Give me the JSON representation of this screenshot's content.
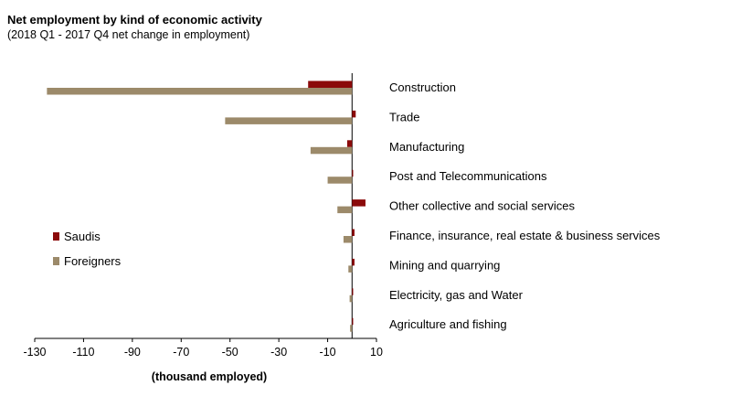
{
  "chart_data": {
    "type": "bar",
    "orientation": "horizontal",
    "title": "Net employment by kind of economic activity",
    "subtitle": "(2018 Q1 - 2017 Q4 net change in employment)",
    "xlabel": "(thousand employed)",
    "xlim": [
      -130,
      10
    ],
    "xticks": [
      -130,
      -110,
      -90,
      -70,
      -50,
      -30,
      -10,
      10
    ],
    "categories": [
      "Construction",
      "Trade",
      "Manufacturing",
      "Post and Telecommunications",
      "Other collective and social services",
      "Finance, insurance, real estate & business services",
      "Mining and quarrying",
      "Electricity, gas and  Water",
      "Agriculture and fishing"
    ],
    "series": [
      {
        "name": "Saudis",
        "color": "#8b0a0a",
        "values": [
          -18,
          1.5,
          -2,
          0,
          5.5,
          1,
          1,
          0,
          0
        ]
      },
      {
        "name": "Foreigners",
        "color": "#9c8a6a",
        "values": [
          -125,
          -52,
          -17,
          -10,
          -6,
          -3.5,
          -1.5,
          -1,
          -0.8
        ]
      }
    ],
    "legend_position": "left-middle",
    "grid": false
  }
}
